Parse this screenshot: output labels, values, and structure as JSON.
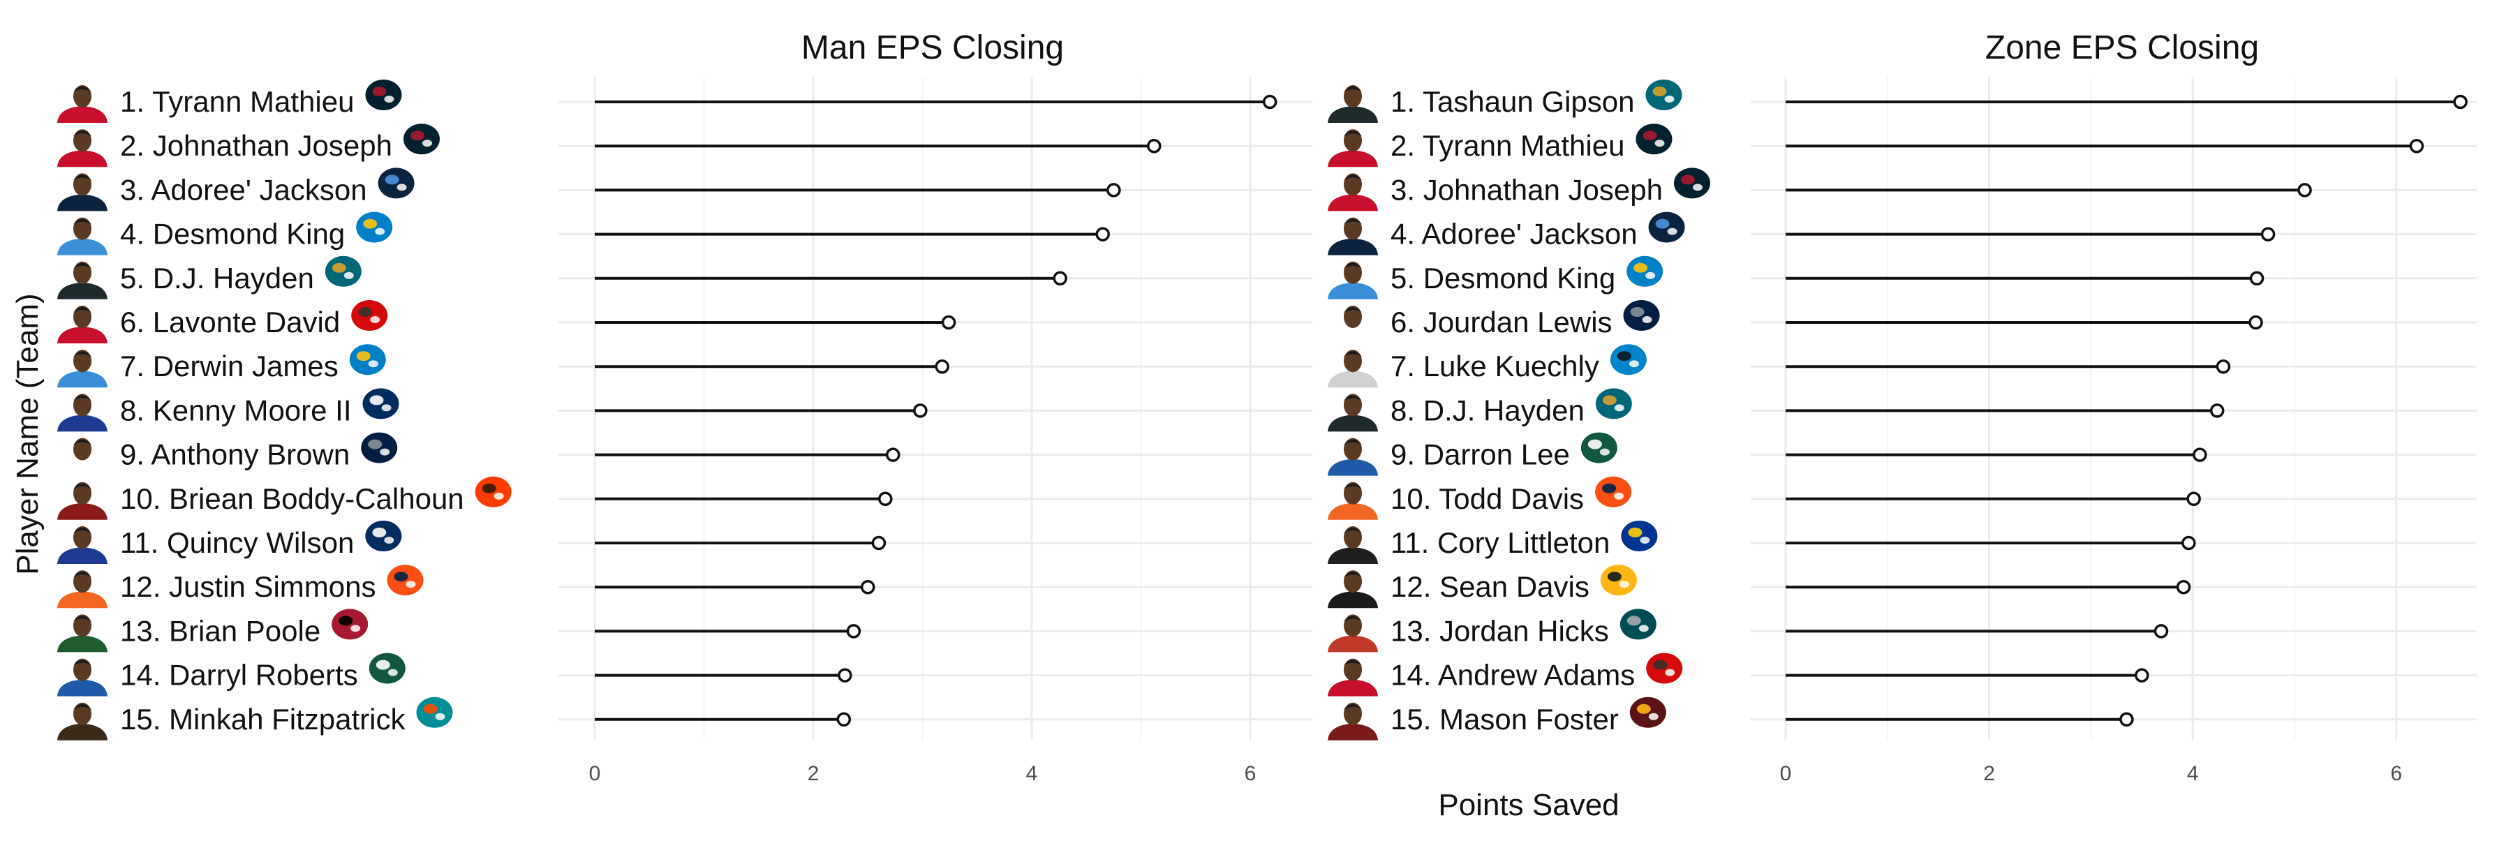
{
  "figure": {
    "ylabel": "Player Name (Team)",
    "xlabel": "Points Saved"
  },
  "chart_data": [
    {
      "type": "lollipop",
      "title": "Man EPS Closing",
      "xlim": [
        0,
        6.4
      ],
      "xticks": [
        0,
        2,
        4,
        6
      ],
      "grid": true,
      "players": [
        {
          "label": "1. Tyrann Mathieu",
          "team": "HOU",
          "value": 6.18
        },
        {
          "label": "2. Johnathan Joseph",
          "team": "HOU",
          "value": 5.12
        },
        {
          "label": "3. Adoree' Jackson",
          "team": "TEN",
          "value": 4.75
        },
        {
          "label": "4. Desmond King",
          "team": "LAC",
          "value": 4.65
        },
        {
          "label": "5. D.J. Hayden",
          "team": "JAX",
          "value": 4.26
        },
        {
          "label": "6. Lavonte David",
          "team": "TB",
          "value": 3.24
        },
        {
          "label": "7. Derwin James",
          "team": "LAC",
          "value": 3.18
        },
        {
          "label": "8. Kenny Moore II",
          "team": "IND",
          "value": 2.98
        },
        {
          "label": "9. Anthony Brown",
          "team": "DAL",
          "value": 2.73
        },
        {
          "label": "10. Briean Boddy-Calhoun",
          "team": "CLE",
          "value": 2.66
        },
        {
          "label": "11. Quincy Wilson",
          "team": "IND",
          "value": 2.6
        },
        {
          "label": "12. Justin Simmons",
          "team": "DEN",
          "value": 2.5
        },
        {
          "label": "13. Brian Poole",
          "team": "ATL",
          "value": 2.37
        },
        {
          "label": "14. Darryl Roberts",
          "team": "NYJ",
          "value": 2.29
        },
        {
          "label": "15. Minkah Fitzpatrick",
          "team": "MIA",
          "value": 2.28
        }
      ]
    },
    {
      "type": "lollipop",
      "title": "Zone EPS Closing",
      "xlim": [
        0,
        6.9
      ],
      "xticks": [
        0,
        2,
        4,
        6
      ],
      "grid": true,
      "players": [
        {
          "label": "1. Tashaun Gipson",
          "team": "JAX",
          "value": 6.63
        },
        {
          "label": "2. Tyrann Mathieu",
          "team": "HOU",
          "value": 6.2
        },
        {
          "label": "3. Johnathan Joseph",
          "team": "HOU",
          "value": 5.1
        },
        {
          "label": "4. Adoree' Jackson",
          "team": "TEN",
          "value": 4.74
        },
        {
          "label": "5. Desmond King",
          "team": "LAC",
          "value": 4.63
        },
        {
          "label": "6. Jourdan Lewis",
          "team": "DAL",
          "value": 4.62
        },
        {
          "label": "7. Luke Kuechly",
          "team": "CAR",
          "value": 4.3
        },
        {
          "label": "8. D.J. Hayden",
          "team": "JAX",
          "value": 4.24
        },
        {
          "label": "9. Darron Lee",
          "team": "NYJ",
          "value": 4.07
        },
        {
          "label": "10. Todd Davis",
          "team": "DEN",
          "value": 4.01
        },
        {
          "label": "11. Cory Littleton",
          "team": "LAR",
          "value": 3.96
        },
        {
          "label": "12. Sean Davis",
          "team": "PIT",
          "value": 3.91
        },
        {
          "label": "13. Jordan Hicks",
          "team": "PHI",
          "value": 3.69
        },
        {
          "label": "14. Andrew Adams",
          "team": "TB",
          "value": 3.5
        },
        {
          "label": "15. Mason Foster",
          "team": "WAS",
          "value": 3.35
        }
      ]
    }
  ],
  "team_colors": {
    "HOU": {
      "jersey": "#c8102e",
      "primary": "#03202f",
      "accent": "#a71930"
    },
    "TEN": {
      "jersey": "#0c2340",
      "primary": "#0c2340",
      "accent": "#4b92db"
    },
    "LAC": {
      "jersey": "#3a8fd8",
      "primary": "#0080c6",
      "accent": "#ffc20e"
    },
    "JAX": {
      "jersey": "#1f2a2c",
      "primary": "#006778",
      "accent": "#d7a22a"
    },
    "TB": {
      "jersey": "#c8102e",
      "primary": "#d50a0a",
      "accent": "#34302b"
    },
    "IND": {
      "jersey": "#1f3a93",
      "primary": "#002c5f",
      "accent": "#ffffff"
    },
    "DAL": {
      "jersey": "#ffffff",
      "primary": "#041e42",
      "accent": "#869397"
    },
    "CLE": {
      "jersey": "#8b1a1a",
      "primary": "#ff3c00",
      "accent": "#311d00"
    },
    "DEN": {
      "jersey": "#f26522",
      "primary": "#fb4f14",
      "accent": "#002244"
    },
    "ATL": {
      "jersey": "#1f5c2e",
      "primary": "#a71930",
      "accent": "#000000"
    },
    "NYJ": {
      "jersey": "#1e5aa8",
      "primary": "#125740",
      "accent": "#ffffff"
    },
    "MIA": {
      "jersey": "#3a2a1a",
      "primary": "#008e97",
      "accent": "#fc4c02"
    },
    "CAR": {
      "jersey": "#d0d0d0",
      "primary": "#0085ca",
      "accent": "#101820"
    },
    "LAR": {
      "jersey": "#1f1f1f",
      "primary": "#003594",
      "accent": "#ffd100"
    },
    "PIT": {
      "jersey": "#1a1a1a",
      "primary": "#ffb612",
      "accent": "#101820"
    },
    "PHI": {
      "jersey": "#c0392b",
      "primary": "#004c54",
      "accent": "#a5acaf"
    },
    "WAS": {
      "jersey": "#7a1a1a",
      "primary": "#5a1414",
      "accent": "#ffb612"
    }
  },
  "colors": {
    "grid": "#ebebeb",
    "grid_minor": "#f4f4f4",
    "stem": "#111111",
    "point_fill": "#ffffff",
    "point_stroke": "#111111",
    "tick_text": "#4d4d4d",
    "skin": "#5b3a24"
  }
}
